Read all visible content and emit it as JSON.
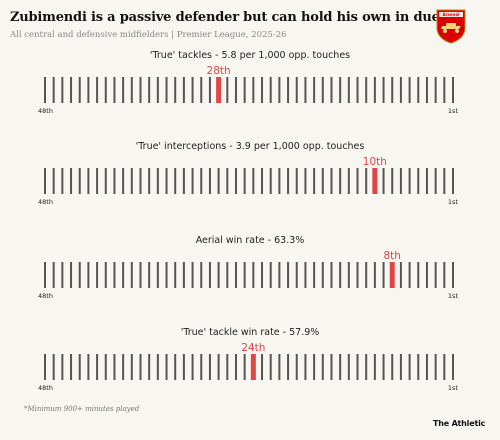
{
  "header": {
    "title": "Zubimendi is a passive defender but can hold his own in duels",
    "subtitle": "All central and defensive midfielders | Premier League, 2025-26"
  },
  "crest": {
    "icon": "arsenal-crest-icon",
    "text": "Arsenal",
    "color": "#db0007"
  },
  "colors": {
    "tick": "#555555",
    "highlight": "#e04646",
    "title_text": "#222222",
    "axis_label": "#222222"
  },
  "chart_data": [
    {
      "type": "strip",
      "title": "'True' tackles - 5.8 per 1,000 opp. touches",
      "total": 48,
      "rank": 28,
      "rank_label": "28th",
      "left_label": "48th",
      "right_label": "1st",
      "direction": "rank 48 at left, rank 1 at right"
    },
    {
      "type": "strip",
      "title": "'True' interceptions - 3.9 per 1,000 opp. touches",
      "total": 48,
      "rank": 10,
      "rank_label": "10th",
      "left_label": "48th",
      "right_label": "1st",
      "direction": "rank 48 at left, rank 1 at right"
    },
    {
      "type": "strip",
      "title": "Aerial win rate - 63.3%",
      "total": 48,
      "rank": 8,
      "rank_label": "8th",
      "left_label": "48th",
      "right_label": "1st",
      "direction": "rank 48 at left, rank 1 at right"
    },
    {
      "type": "strip",
      "title": "'True' tackle win rate - 57.9%",
      "total": 48,
      "rank": 24,
      "rank_label": "24th",
      "left_label": "48th",
      "right_label": "1st",
      "direction": "rank 48 at left, rank 1 at right"
    }
  ],
  "footnote": "*Minimum 900+ minutes played",
  "brand": "The Athletic"
}
